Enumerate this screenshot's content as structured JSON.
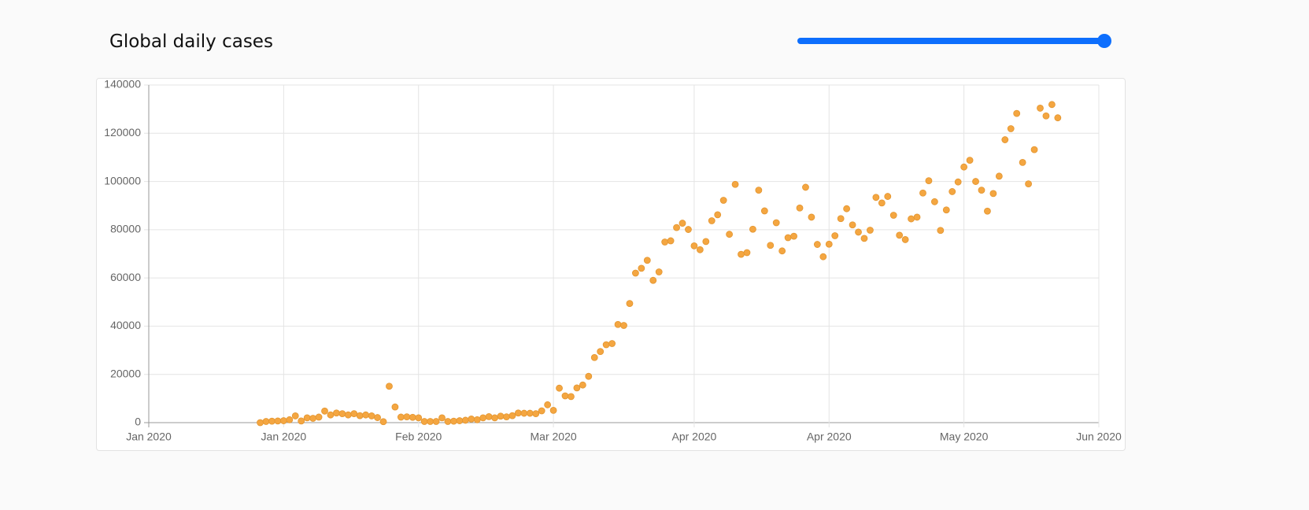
{
  "header": {
    "title": "Global daily cases"
  },
  "chart_data": {
    "type": "scatter",
    "color": "#f4a641",
    "x": [
      19,
      20,
      21,
      22,
      23,
      24,
      25,
      26,
      27,
      28,
      29,
      30,
      31,
      32,
      33,
      34,
      35,
      36,
      37,
      38,
      39,
      40,
      41,
      42,
      43,
      44,
      45,
      46,
      47,
      48,
      49,
      50,
      51,
      52,
      53,
      54,
      55,
      56,
      57,
      58,
      59,
      60,
      61,
      62,
      63,
      64,
      65,
      66,
      67,
      68,
      69,
      70,
      71,
      72,
      73,
      74,
      75,
      76,
      77,
      78,
      79,
      80,
      81,
      82,
      83,
      84,
      85,
      86,
      87,
      88,
      89,
      90,
      91,
      92,
      93,
      94,
      95,
      96,
      97,
      98,
      99,
      100,
      101,
      102,
      103,
      104,
      105,
      106,
      107,
      108,
      109,
      110,
      111,
      112,
      113,
      114,
      115,
      116,
      117,
      118,
      119,
      120,
      121,
      122,
      123,
      124,
      125,
      126,
      127,
      128,
      129,
      130,
      131,
      132,
      133,
      134,
      135,
      136,
      137,
      138,
      139,
      140,
      141,
      142,
      143,
      144,
      145,
      146,
      147,
      148,
      149,
      150,
      151,
      152,
      153,
      154,
      155
    ],
    "values": [
      0,
      500,
      600,
      700,
      800,
      1200,
      2800,
      700,
      2000,
      1800,
      2300,
      4800,
      3200,
      4000,
      3700,
      3200,
      3700,
      2900,
      3200,
      2800,
      2100,
      400,
      15100,
      6500,
      2300,
      2400,
      2200,
      2000,
      500,
      500,
      500,
      2000,
      500,
      600,
      800,
      1000,
      1500,
      1200,
      2000,
      2500,
      2000,
      2700,
      2400,
      2900,
      4000,
      3900,
      3900,
      3700,
      4900,
      7400,
      5100,
      14300,
      11100,
      10800,
      14400,
      15600,
      19200,
      27000,
      29500,
      32300,
      32800,
      40700,
      40300,
      49400,
      62000,
      64000,
      67300,
      59000,
      62500,
      74900,
      75400,
      80900,
      82700,
      80100,
      73300,
      71700,
      75100,
      83700,
      86200,
      92200,
      78100,
      98800,
      69800,
      70500,
      80200,
      96400,
      87800,
      73500,
      82900,
      71200,
      76700,
      77300,
      89000,
      97600,
      85200,
      73900,
      68800,
      74000,
      77500,
      84600,
      88700,
      82000,
      79000,
      76400,
      79800,
      93400,
      91100,
      93800,
      86000,
      77700,
      75900,
      84500,
      85200,
      95200,
      100300,
      91600,
      79700,
      88200,
      95800,
      99800,
      106000,
      108800,
      100000,
      96400,
      87700,
      95000,
      102200,
      117300,
      121900,
      128200,
      107900,
      99000,
      113200,
      130400,
      127200,
      131900,
      126400
    ],
    "xlim": [
      0,
      162
    ],
    "xticks": [
      {
        "value": 0,
        "label": "Jan 2020"
      },
      {
        "value": 23,
        "label": "Jan 2020"
      },
      {
        "value": 46,
        "label": "Feb 2020"
      },
      {
        "value": 69,
        "label": "Mar 2020"
      },
      {
        "value": 93,
        "label": "Apr 2020"
      },
      {
        "value": 116,
        "label": "Apr 2020"
      },
      {
        "value": 139,
        "label": "May 2020"
      },
      {
        "value": 162,
        "label": "Jun 2020"
      }
    ],
    "ylim": [
      0,
      140000
    ],
    "yticks": [
      0,
      20000,
      40000,
      60000,
      80000,
      100000,
      120000,
      140000
    ],
    "grid": true
  }
}
